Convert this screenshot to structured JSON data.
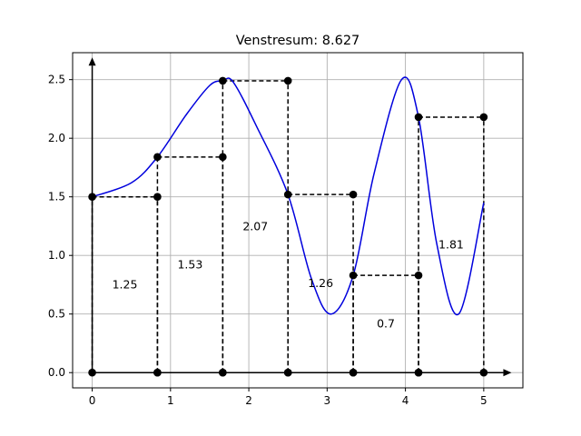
{
  "chart_data": {
    "type": "line",
    "title": "Venstresum: 8.627",
    "xlabel": "",
    "ylabel": "",
    "xlim": [
      -0.25,
      5.5
    ],
    "ylim": [
      -0.13,
      2.73
    ],
    "grid": true,
    "x_ticks": [
      "0",
      "1",
      "2",
      "3",
      "4",
      "5"
    ],
    "y_ticks": [
      "0.0",
      "0.5",
      "1.0",
      "1.5",
      "2.0",
      "2.5"
    ],
    "x_tick_values": [
      0,
      1,
      2,
      3,
      4,
      5
    ],
    "y_tick_values": [
      0.0,
      0.5,
      1.0,
      1.5,
      2.0,
      2.5
    ],
    "curve_color": "#0000dd",
    "rect_color": "#000000",
    "curve_formula": "0.5 + 2*sin(x^2/5)^2 + 1*sin(x)^2 ... (smooth curve)",
    "curve_samples": {
      "x": [
        0,
        0.5,
        0.833,
        1.2,
        1.5,
        1.667,
        1.8,
        2.1,
        2.5,
        2.8,
        3.05,
        3.333,
        3.6,
        3.95,
        4.167,
        4.4,
        4.68,
        5.0
      ],
      "y": [
        1.5,
        1.62,
        1.84,
        2.2,
        2.45,
        2.49,
        2.48,
        2.1,
        1.52,
        0.8,
        0.5,
        0.83,
        1.7,
        2.5,
        2.18,
        1.1,
        0.5,
        1.45
      ]
    },
    "rectangles": [
      {
        "x0": 0.0,
        "x1": 0.833,
        "height": 1.5,
        "label": "1.25"
      },
      {
        "x0": 0.833,
        "x1": 1.667,
        "height": 1.84,
        "label": "1.53"
      },
      {
        "x0": 1.667,
        "x1": 2.5,
        "height": 2.49,
        "label": "2.07"
      },
      {
        "x0": 2.5,
        "x1": 3.333,
        "height": 1.52,
        "label": "1.26"
      },
      {
        "x0": 3.333,
        "x1": 4.167,
        "height": 0.83,
        "label": "0.7"
      },
      {
        "x0": 4.167,
        "x1": 5.0,
        "height": 2.18,
        "label": "1.81"
      }
    ]
  }
}
